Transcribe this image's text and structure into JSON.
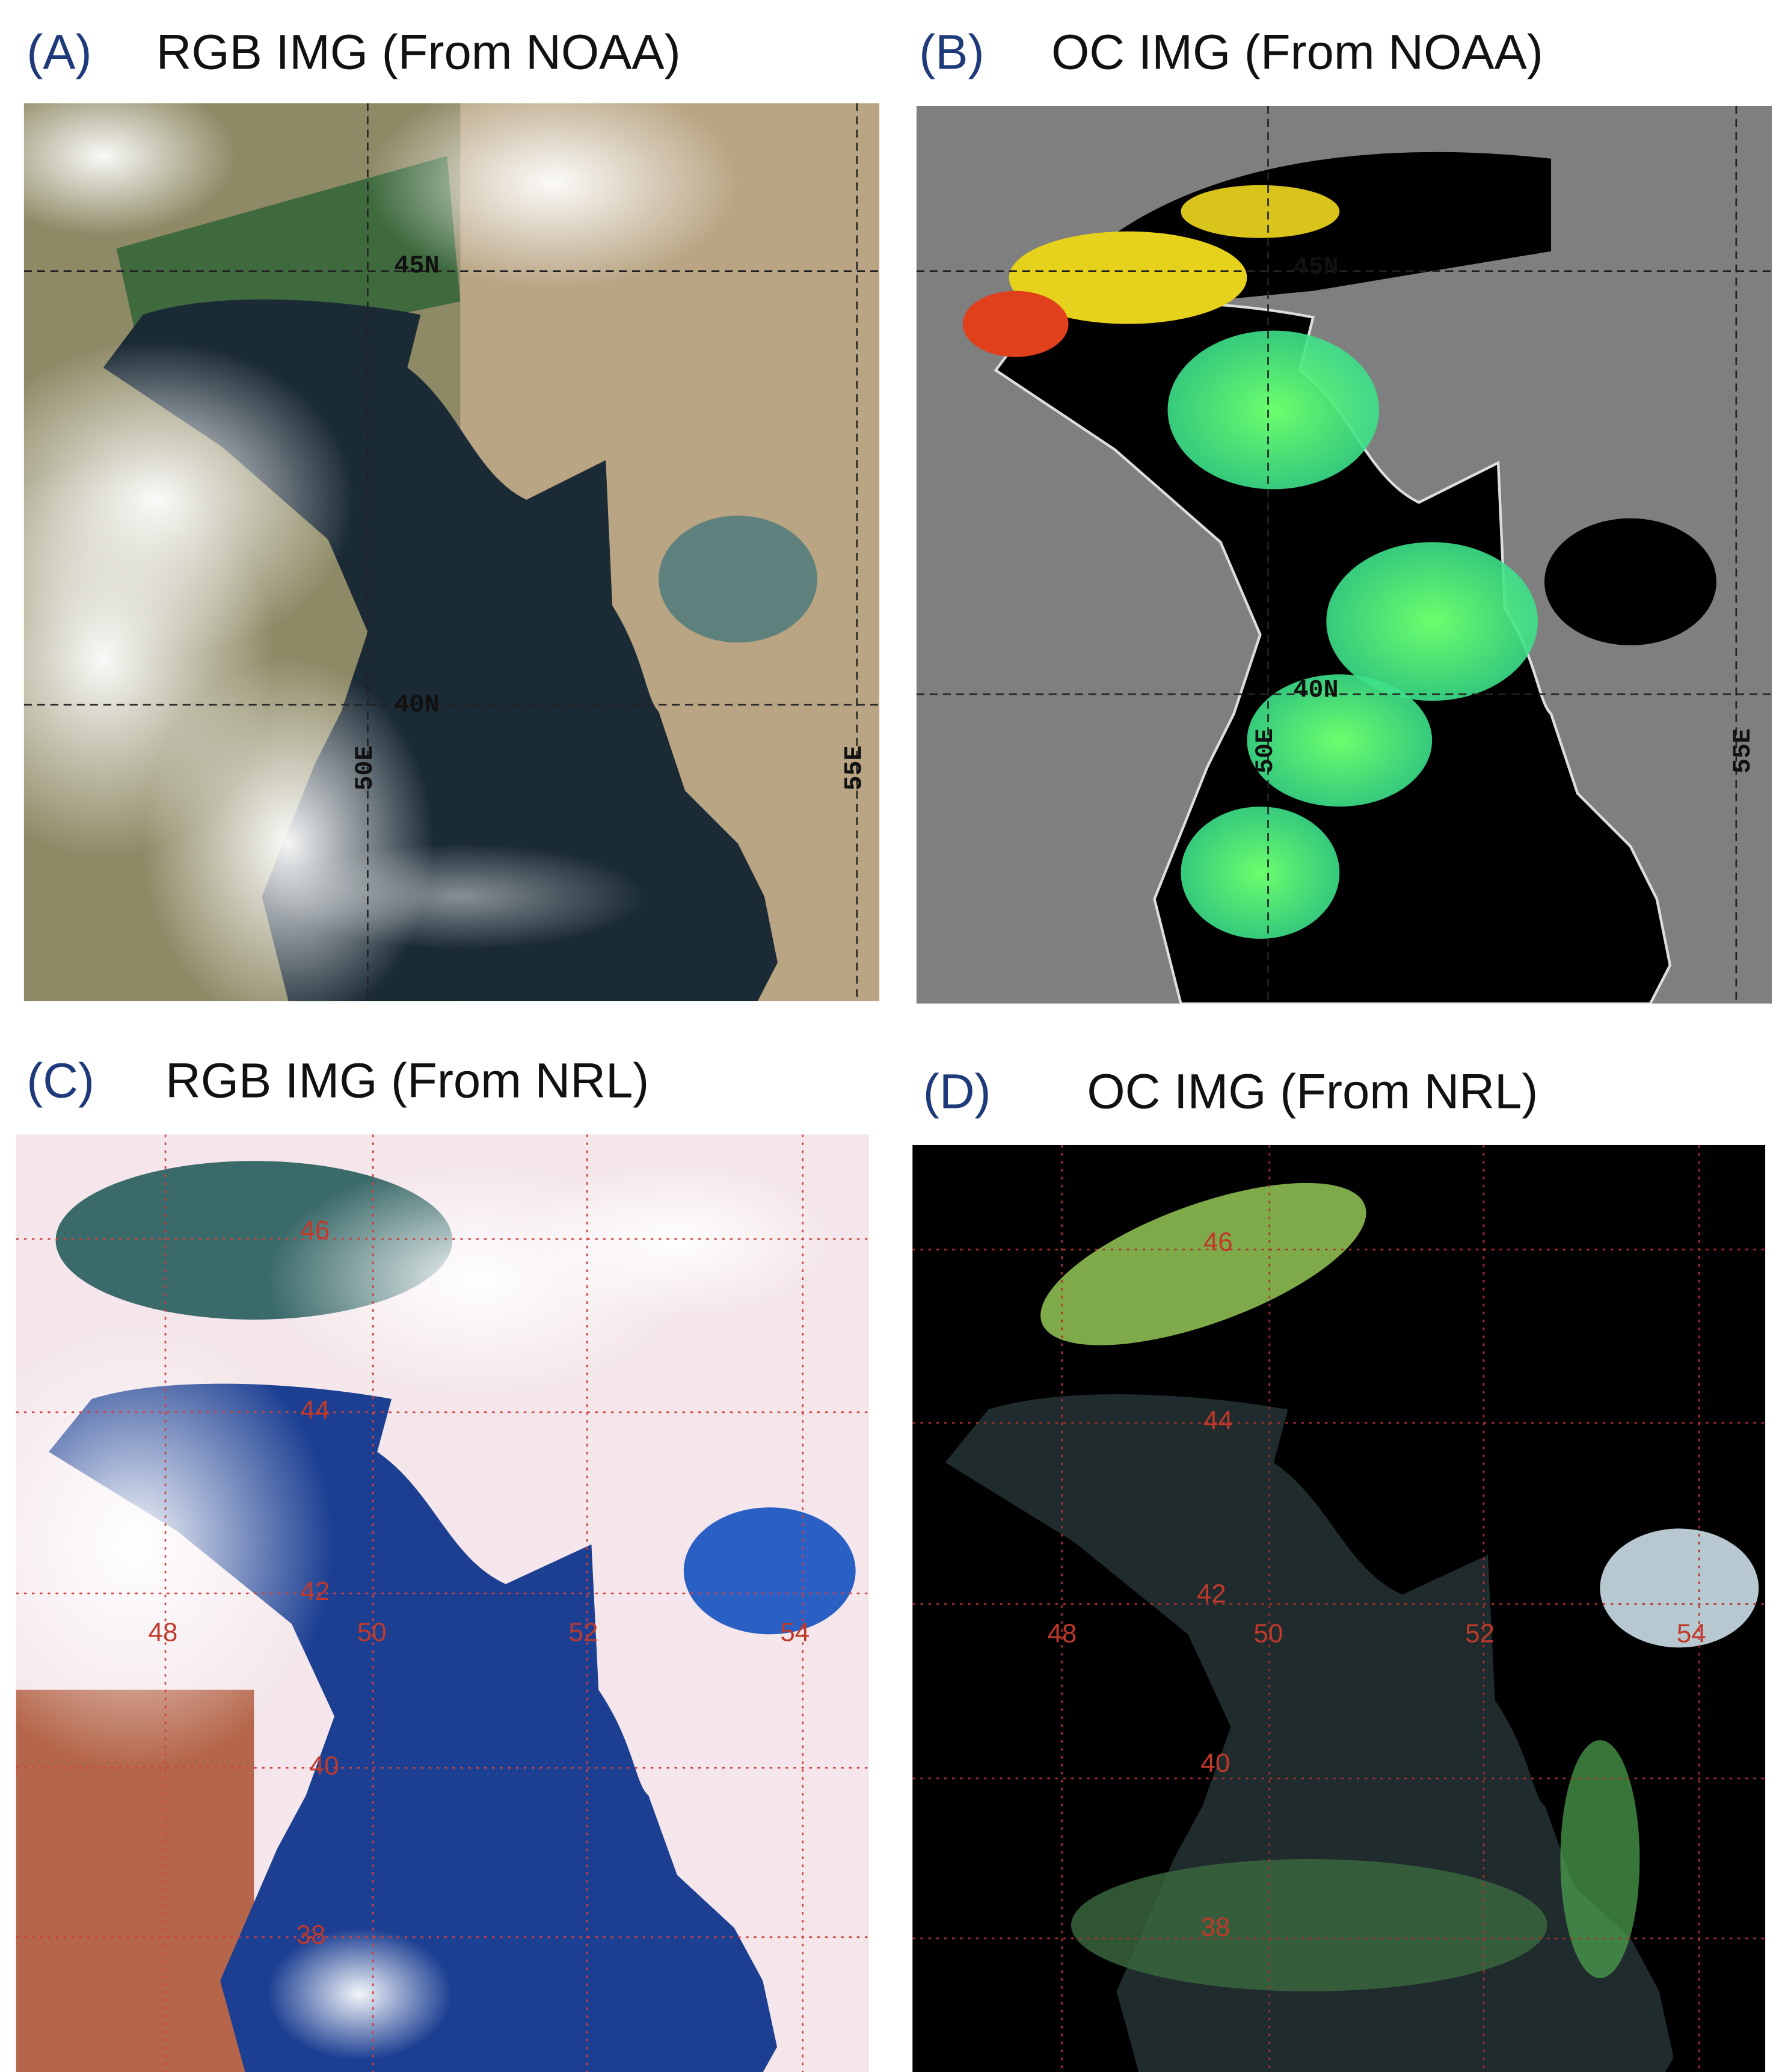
{
  "panels": [
    {
      "label": "(A)",
      "title": "RGB IMG (From NOAA)",
      "grid_labels": [
        "45N",
        "40N",
        "50E",
        "55E"
      ]
    },
    {
      "label": "(B)",
      "title": "OC IMG (From NOAA)",
      "grid_labels": [
        "45N",
        "40N",
        "50E",
        "55E"
      ]
    },
    {
      "label": "(C)",
      "title": "RGB IMG (From NRL)",
      "grid_labels": [
        "46",
        "44",
        "42",
        "40",
        "38",
        "48",
        "50",
        "52",
        "54"
      ]
    },
    {
      "label": "(D)",
      "title": "OC IMG (From NRL)",
      "grid_labels": [
        "46",
        "44",
        "42",
        "40",
        "38",
        "48",
        "50",
        "52",
        "54"
      ]
    }
  ]
}
